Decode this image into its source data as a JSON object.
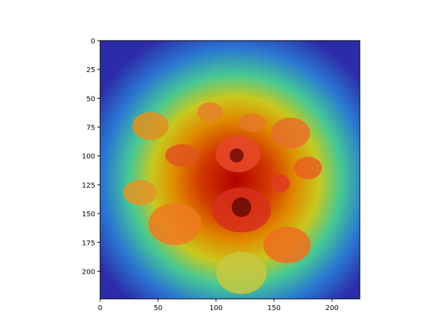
{
  "chart_data": {
    "type": "heatmap",
    "description_kind": "image with attention heatmap overlay",
    "x_ticks": [
      0,
      50,
      100,
      150,
      200
    ],
    "y_ticks": [
      0,
      25,
      50,
      75,
      100,
      125,
      150,
      175,
      200
    ],
    "xlim": [
      0,
      224
    ],
    "ylim": [
      224,
      0
    ],
    "colormap": "jet",
    "title": "",
    "xlabel": "",
    "ylabel": ""
  }
}
